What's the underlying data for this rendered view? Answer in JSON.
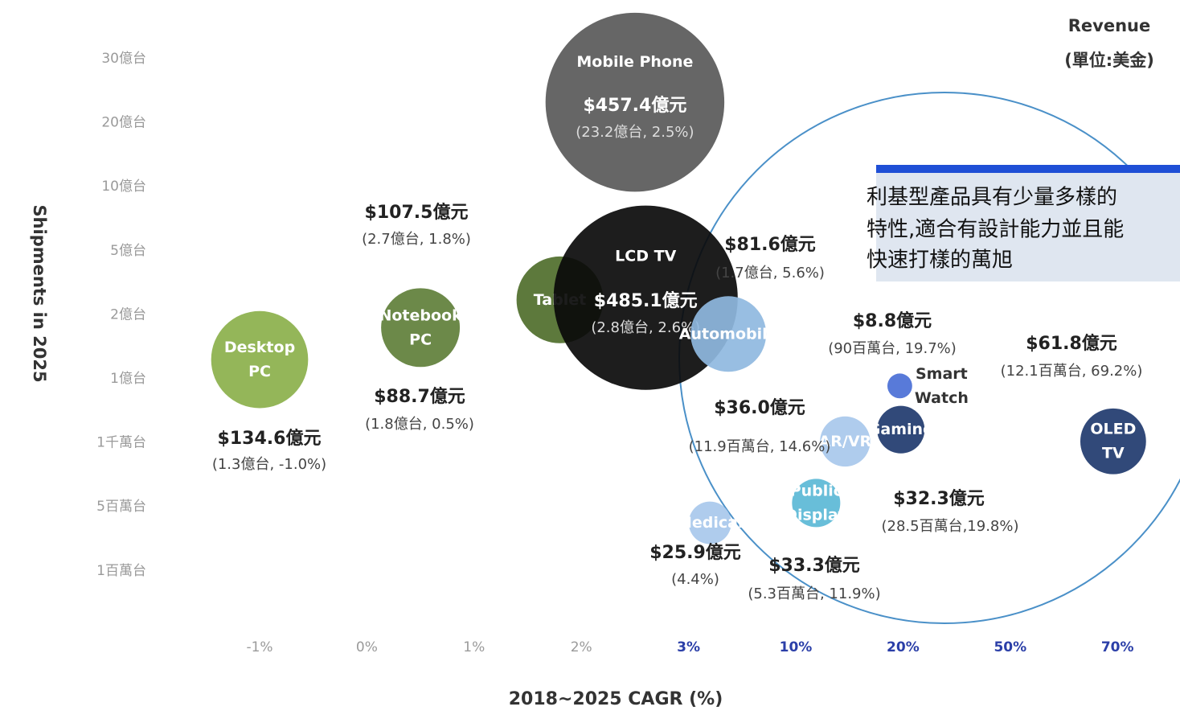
{
  "chart_data": {
    "type": "bubble",
    "title": "Revenue",
    "subtitle": "(單位:美金)",
    "xlabel": "2018~2025 CAGR (%)",
    "ylabel": "Shipments in 2025",
    "xticks": [
      {
        "value": -1,
        "label": "-1%"
      },
      {
        "value": 0,
        "label": "0%"
      },
      {
        "value": 1,
        "label": "1%"
      },
      {
        "value": 2,
        "label": "2%"
      },
      {
        "value": 3,
        "label": "3%"
      },
      {
        "value": 10,
        "label": "10%"
      },
      {
        "value": 20,
        "label": "20%"
      },
      {
        "value": 50,
        "label": "50%"
      },
      {
        "value": 70,
        "label": "70%"
      }
    ],
    "yticks": [
      {
        "value": 3000,
        "label": "30億台"
      },
      {
        "value": 2000,
        "label": "20億台"
      },
      {
        "value": 1000,
        "label": "10億台"
      },
      {
        "value": 500,
        "label": "5億台"
      },
      {
        "value": 200,
        "label": "2億台"
      },
      {
        "value": 100,
        "label": "1億台"
      },
      {
        "value": 10,
        "label": "1千萬台"
      },
      {
        "value": 5,
        "label": "5百萬台"
      },
      {
        "value": 1,
        "label": "1百萬台"
      }
    ],
    "annotation": [
      "利基型產品具有少量多樣的",
      "特性,適合有設計能力並且能",
      "快速打樣的萬旭"
    ],
    "points": [
      {
        "name": "Desktop\nPC",
        "color": "#8bb04b",
        "x": -1.0,
        "y": 130,
        "size": 134.6,
        "size_label": "$134.6億元",
        "detail": "(1.3億台, -1.0%)"
      },
      {
        "name": "Notebook\nPC",
        "color": "#5f7f3a",
        "x": 0.5,
        "y": 180,
        "size": 88.7,
        "size_label": "$88.7億元",
        "detail": "(1.8億台, 0.5%)"
      },
      {
        "name": "Tablet",
        "color": "#4f6e2b",
        "x": 1.8,
        "y": 270,
        "size": 107.5,
        "size_label": "$107.5億元",
        "detail": "(2.7億台, 1.8%)"
      },
      {
        "name": "LCD TV",
        "color": "#0a0a0a",
        "x": 2.6,
        "y": 280,
        "size": 485.1,
        "size_label": "$485.1億元",
        "detail": "(2.8億台, 2.6%)"
      },
      {
        "name": "Mobile Phone",
        "color": "#595959",
        "x": 2.5,
        "y": 2320,
        "size": 457.4,
        "size_label": "$457.4億元",
        "detail": "(23.2億台, 2.5%)"
      },
      {
        "name": "Automobile",
        "color": "#8fb8e0",
        "x": 5.6,
        "y": 170,
        "size": 81.6,
        "size_label": "$81.6億元",
        "detail": "(1.7億台, 5.6%)"
      },
      {
        "name": "Smart\nWatch",
        "color": "#4a6fd6",
        "x": 19.7,
        "y": 90,
        "size": 8.8,
        "size_label": "$8.8億元",
        "detail": "(90百萬台, 19.7%)"
      },
      {
        "name": "OLED\nTV",
        "color": "#1f3a6e",
        "x": 69.2,
        "y": 12.1,
        "size": 61.8,
        "size_label": "$61.8億元",
        "detail": "(12.1百萬台, 69.2%)"
      },
      {
        "name": "AR/VR",
        "color": "#a8c8ec",
        "x": 14.6,
        "y": 11.9,
        "size": 36.0,
        "size_label": "$36.0億元",
        "detail": "(11.9百萬台, 14.6%)"
      },
      {
        "name": "Gaming",
        "color": "#1f3a6e",
        "x": 19.8,
        "y": 28.5,
        "size": 32.3,
        "size_label": "$32.3億元",
        "detail": "(28.5百萬台,19.8%)"
      },
      {
        "name": "Public\nDisplay",
        "color": "#5bb8d6",
        "x": 11.9,
        "y": 5.3,
        "size": 33.3,
        "size_label": "$33.3億元",
        "detail": "(5.3百萬台, 11.9%)"
      },
      {
        "name": "Medical",
        "color": "#a8c8ec",
        "x": 4.4,
        "y": 4,
        "size": 25.9,
        "size_label": "$25.9億元",
        "detail": "(4.4%)"
      }
    ]
  }
}
